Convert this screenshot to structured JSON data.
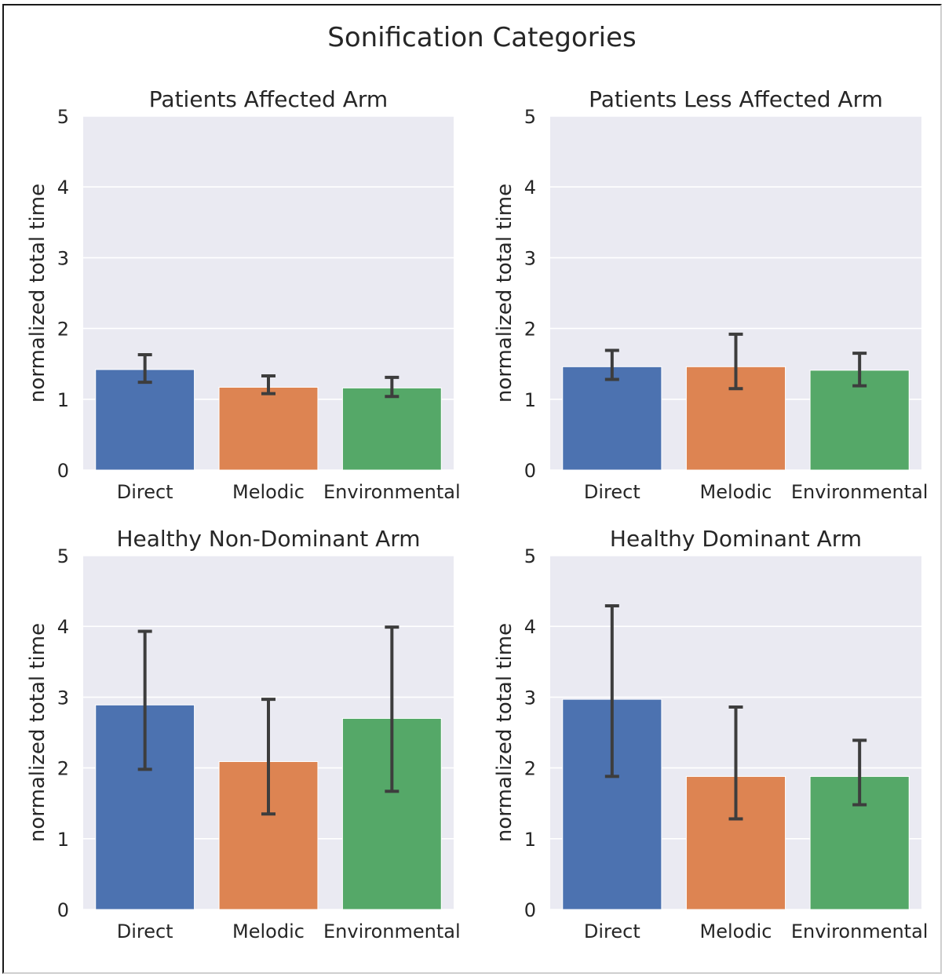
{
  "figure_title": "Sonification Categories",
  "colors": {
    "background": "#EAEAF2",
    "grid": "#FFFFFF",
    "errorbar": "#3d3d3d"
  },
  "chart_data": [
    {
      "type": "bar",
      "title": "Patients Affected Arm",
      "ylabel": "normalized total time",
      "xlabel": "",
      "ylim": [
        0,
        5
      ],
      "yticks": [
        0,
        1,
        2,
        3,
        4,
        5
      ],
      "grid": true,
      "categories": [
        "Direct",
        "Melodic",
        "Environmental"
      ],
      "colors": [
        "#4C72B0",
        "#DD8452",
        "#55A868"
      ],
      "values": [
        1.42,
        1.17,
        1.16
      ],
      "error_low": [
        1.24,
        1.08,
        1.04
      ],
      "error_high": [
        1.63,
        1.33,
        1.31
      ]
    },
    {
      "type": "bar",
      "title": "Patients Less Affected Arm",
      "ylabel": "normalized total time",
      "xlabel": "",
      "ylim": [
        0,
        5
      ],
      "yticks": [
        0,
        1,
        2,
        3,
        4,
        5
      ],
      "grid": true,
      "categories": [
        "Direct",
        "Melodic",
        "Environmental"
      ],
      "colors": [
        "#4C72B0",
        "#DD8452",
        "#55A868"
      ],
      "values": [
        1.46,
        1.46,
        1.41
      ],
      "error_low": [
        1.28,
        1.15,
        1.19
      ],
      "error_high": [
        1.69,
        1.92,
        1.65
      ]
    },
    {
      "type": "bar",
      "title": "Healthy Non-Dominant Arm",
      "ylabel": "normalized total time",
      "xlabel": "",
      "ylim": [
        0,
        5
      ],
      "yticks": [
        0,
        1,
        2,
        3,
        4,
        5
      ],
      "grid": true,
      "categories": [
        "Direct",
        "Melodic",
        "Environmental"
      ],
      "colors": [
        "#4C72B0",
        "#DD8452",
        "#55A868"
      ],
      "values": [
        2.89,
        2.09,
        2.7
      ],
      "error_low": [
        1.98,
        1.35,
        1.67
      ],
      "error_high": [
        3.93,
        2.97,
        3.99
      ]
    },
    {
      "type": "bar",
      "title": "Healthy Dominant Arm",
      "ylabel": "normalized total time",
      "xlabel": "",
      "ylim": [
        0,
        5
      ],
      "yticks": [
        0,
        1,
        2,
        3,
        4,
        5
      ],
      "grid": true,
      "categories": [
        "Direct",
        "Melodic",
        "Environmental"
      ],
      "colors": [
        "#4C72B0",
        "#DD8452",
        "#55A868"
      ],
      "values": [
        2.97,
        1.88,
        1.88
      ],
      "error_low": [
        1.88,
        1.28,
        1.48
      ],
      "error_high": [
        4.29,
        2.86,
        2.39
      ]
    }
  ]
}
